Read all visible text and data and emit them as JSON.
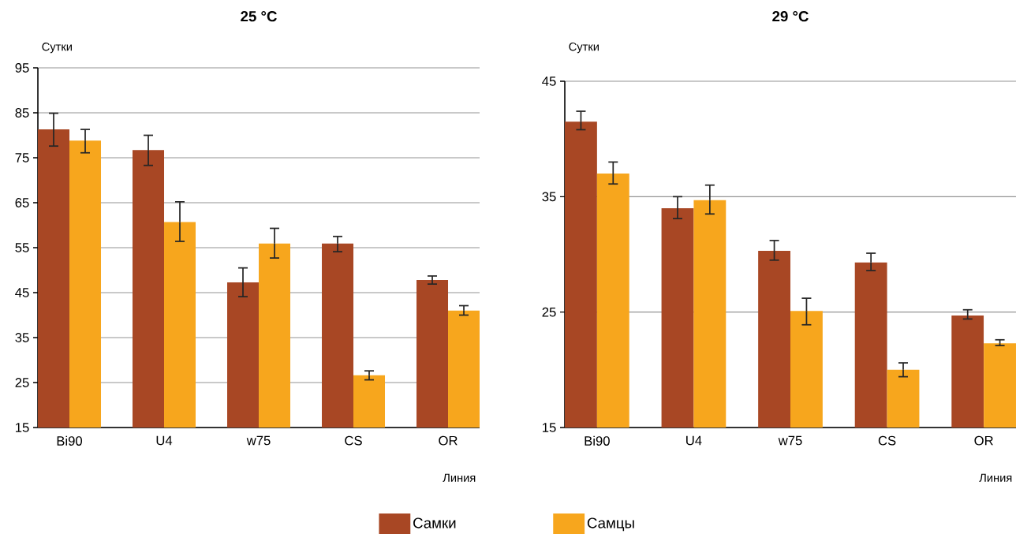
{
  "chart_data": [
    {
      "type": "bar",
      "title": "25 °C",
      "ylabel": "Сутки",
      "xlabel": "Линия",
      "categories": [
        "Bi90",
        "U4",
        "w75",
        "CS",
        "OR"
      ],
      "ylim": [
        15,
        95
      ],
      "yticks": [
        15,
        25,
        35,
        45,
        55,
        65,
        75,
        85,
        95
      ],
      "grid": "y",
      "legend": "bottom",
      "series": [
        {
          "name": "Самки",
          "color": "#a84724",
          "values": [
            81.3,
            76.7,
            47.3,
            55.9,
            47.8
          ],
          "errors": [
            [
              77.6,
              84.9
            ],
            [
              73.3,
              80.0
            ],
            [
              44.1,
              50.5
            ],
            [
              54.1,
              57.5
            ],
            [
              46.9,
              48.7
            ]
          ]
        },
        {
          "name": "Самцы",
          "color": "#f7a61d",
          "values": [
            78.8,
            60.7,
            55.9,
            26.6,
            41.0
          ],
          "errors": [
            [
              76.1,
              81.3
            ],
            [
              56.4,
              65.2
            ],
            [
              52.7,
              59.3
            ],
            [
              25.6,
              27.6
            ],
            [
              40.0,
              42.1
            ]
          ]
        }
      ]
    },
    {
      "type": "bar",
      "title": "29 °C",
      "ylabel": "Сутки",
      "xlabel": "Линия",
      "categories": [
        "Bi90",
        "U4",
        "w75",
        "CS",
        "OR"
      ],
      "ylim": [
        15,
        45
      ],
      "yticks": [
        15,
        25,
        35,
        45
      ],
      "grid": "y",
      "series": [
        {
          "color": "#a84724",
          "values": [
            41.5,
            34.0,
            30.3,
            29.3,
            24.7
          ],
          "errors": [
            [
              40.8,
              42.4
            ],
            [
              33.1,
              35.0
            ],
            [
              29.5,
              31.2
            ],
            [
              28.6,
              30.1
            ],
            [
              24.4,
              25.2
            ]
          ]
        },
        {
          "color": "#f7a61d",
          "values": [
            37.0,
            34.7,
            25.1,
            20.0,
            22.3
          ],
          "errors": [
            [
              36.1,
              38.0
            ],
            [
              33.5,
              36.0
            ],
            [
              23.9,
              26.2
            ],
            [
              19.4,
              20.6
            ],
            [
              22.1,
              22.6
            ]
          ]
        }
      ]
    }
  ]
}
